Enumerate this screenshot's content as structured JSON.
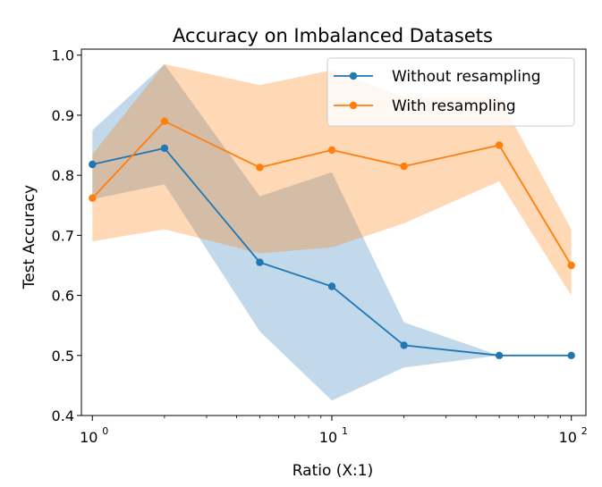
{
  "chart_data": {
    "type": "line",
    "title": "Accuracy on Imbalanced Datasets",
    "xlabel": "Ratio (X:1)",
    "ylabel": "Test Accuracy",
    "xscale": "log",
    "xlim": [
      0.9,
      115
    ],
    "ylim": [
      0.4,
      1.01
    ],
    "x_ticks": [
      {
        "base": "10",
        "exp": "0"
      },
      {
        "base": "10",
        "exp": "1"
      },
      {
        "base": "10",
        "exp": "2"
      }
    ],
    "y_ticks": [
      "0.4",
      "0.5",
      "0.6",
      "0.7",
      "0.8",
      "0.9",
      "1.0"
    ],
    "y_tick_values": [
      0.4,
      0.5,
      0.6,
      0.7,
      0.8,
      0.9,
      1.0
    ],
    "x": [
      1,
      2,
      5,
      10,
      20,
      50,
      100
    ],
    "legend_position": "top-right",
    "series": [
      {
        "name": "Without resampling",
        "color": "#1f77b4",
        "values": [
          0.818,
          0.845,
          0.655,
          0.615,
          0.517,
          0.5,
          0.5
        ],
        "lower": [
          0.76,
          0.785,
          0.54,
          0.425,
          0.48,
          0.5,
          0.5
        ],
        "upper": [
          0.875,
          0.985,
          0.765,
          0.805,
          0.555,
          0.5,
          0.5
        ]
      },
      {
        "name": "With resampling",
        "color": "#ff7f0e",
        "values": [
          0.762,
          0.89,
          0.813,
          0.842,
          0.815,
          0.85,
          0.65
        ],
        "lower": [
          0.69,
          0.71,
          0.67,
          0.68,
          0.72,
          0.79,
          0.6
        ],
        "upper": [
          0.835,
          0.985,
          0.95,
          0.975,
          0.93,
          0.93,
          0.71
        ]
      }
    ]
  }
}
